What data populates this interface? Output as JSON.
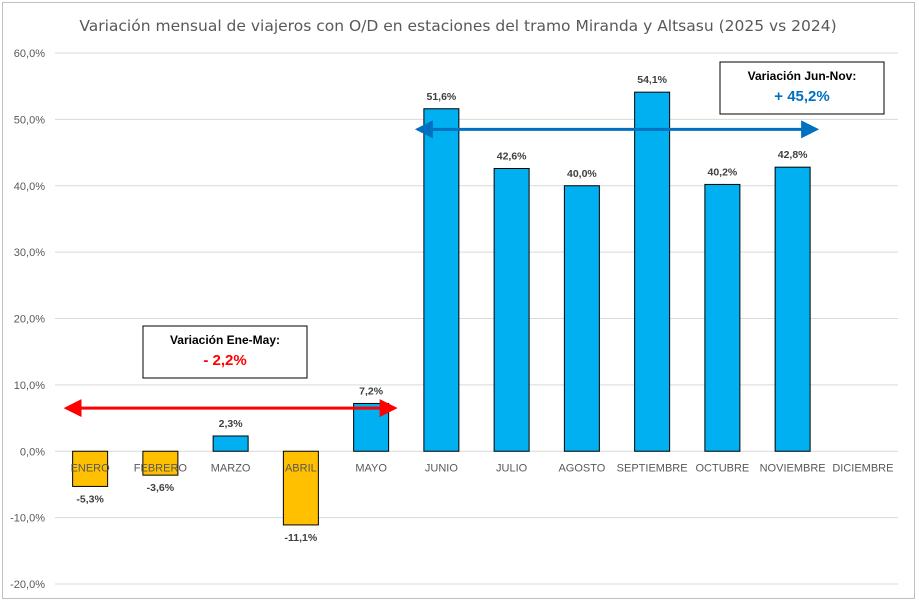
{
  "chart_data": {
    "type": "bar",
    "title": "Variación mensual de viajeros con O/D en estaciones del tramo Miranda y Altsasu (2025 vs 2024)",
    "xlabel": "",
    "ylabel": "",
    "ylim": [
      -20,
      60
    ],
    "yticks": [
      "60,0%",
      "50,0%",
      "40,0%",
      "30,0%",
      "20,0%",
      "10,0%",
      "0,0%",
      "-10,0%",
      "-20,0%"
    ],
    "ytick_values": [
      60,
      50,
      40,
      30,
      20,
      10,
      0,
      -10,
      -20
    ],
    "grid": true,
    "legend": "none",
    "categories": [
      "ENERO",
      "FEBRERO",
      "MARZO",
      "ABRIL",
      "MAYO",
      "JUNIO",
      "JULIO",
      "AGOSTO",
      "SEPTIEMBRE",
      "OCTUBRE",
      "NOVIEMBRE",
      "DICIEMBRE"
    ],
    "values": [
      -5.3,
      -3.6,
      2.3,
      -11.1,
      7.2,
      51.6,
      42.6,
      40.0,
      54.1,
      40.2,
      42.8,
      null
    ],
    "data_labels": [
      "-5,3%",
      "-3,6%",
      "2,3%",
      "-11,1%",
      "7,2%",
      "51,6%",
      "42,6%",
      "40,0%",
      "54,1%",
      "40,2%",
      "42,8%",
      ""
    ],
    "colors": {
      "positive": "#00B0F0",
      "negative": "#FFC000",
      "bar_outline": "#000000",
      "arrow_ene_may": "#FF0000",
      "arrow_jun_nov": "#0070C0"
    },
    "annotations": [
      {
        "title": "Variación Ene-May:",
        "value": "- 2,2%",
        "value_color": "#FF0000",
        "arrow_from": "ENERO",
        "arrow_to": "MAYO",
        "arrow_y": 6.5
      },
      {
        "title": "Variación Jun-Nov:",
        "value": "+ 45,2%",
        "value_color": "#0070C0",
        "arrow_from": "JUNIO",
        "arrow_to": "NOVIEMBRE",
        "arrow_y": 48.5
      }
    ]
  }
}
